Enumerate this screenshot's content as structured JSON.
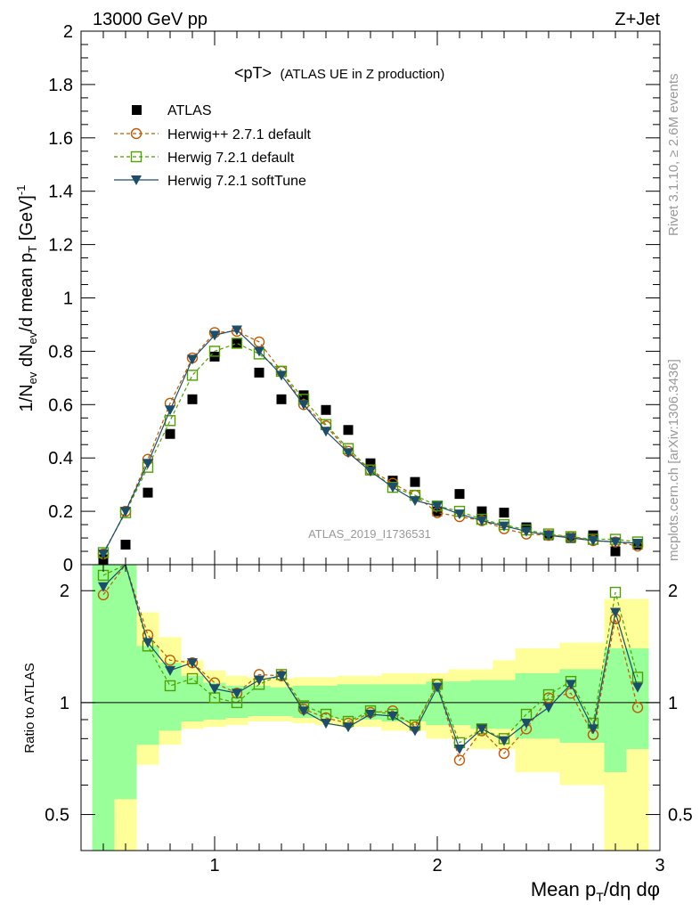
{
  "header": {
    "energy_label": "13000 GeV pp",
    "process_label": "Z+Jet"
  },
  "side_labels": {
    "rivet": "Rivet 3.1.10, ≥ 2.6M events",
    "mcplots": "mcplots.cern.ch [arXiv:1306.3436]"
  },
  "chart_data": {
    "type": "scatter",
    "title": "<pT> (ATLAS UE in Z production)",
    "title_main": "<pT>",
    "title_sub": "(ATLAS UE in Z production)",
    "analysis_id": "ATLAS_2019_I1736531",
    "xlabel": "Mean p_T/dη dφ",
    "xlabel_main": "Mean p",
    "xlabel_sub": "T",
    "xlabel_tail": "/dη dφ",
    "ylabel": "1/N_ev dN_ev/d mean p_T [GeV]^-1",
    "ratio_ylabel": "Ratio to ATLAS",
    "xlim": [
      0.4,
      3.0
    ],
    "ylim": [
      0,
      2.0
    ],
    "ratio_ylim": [
      0.4,
      2.35
    ],
    "ratio_log_scale": true,
    "x_ticks": [
      "1",
      "2",
      "3"
    ],
    "y_ticks": [
      "0",
      "0.2",
      "0.4",
      "0.6",
      "0.8",
      "1",
      "1.2",
      "1.4",
      "1.6",
      "1.8",
      "2"
    ],
    "ratio_ticks": [
      "0.5",
      "1",
      "2"
    ],
    "legend_placement": "top-left",
    "x": [
      0.5,
      0.6,
      0.7,
      0.8,
      0.9,
      1.0,
      1.1,
      1.2,
      1.3,
      1.4,
      1.5,
      1.6,
      1.7,
      1.8,
      1.9,
      2.0,
      2.1,
      2.2,
      2.3,
      2.4,
      2.5,
      2.6,
      2.7,
      2.8,
      2.9
    ],
    "series": [
      {
        "name": "ATLAS",
        "color": "#000000",
        "marker": "square-filled",
        "values": [
          0.02,
          0.075,
          0.27,
          0.49,
          0.62,
          0.78,
          0.83,
          0.72,
          0.62,
          0.635,
          0.58,
          0.505,
          0.38,
          0.315,
          0.31,
          0.2,
          0.265,
          0.2,
          0.195,
          0.14,
          0.11,
          0.1,
          0.11,
          0.05,
          0.075
        ]
      },
      {
        "name": "Herwig++ 2.7.1 default",
        "color": "#c05a00",
        "marker": "circle-open",
        "values": [
          0.04,
          0.2,
          0.395,
          0.605,
          0.775,
          0.87,
          0.875,
          0.835,
          0.725,
          0.6,
          0.52,
          0.425,
          0.355,
          0.305,
          0.26,
          0.195,
          0.18,
          0.165,
          0.135,
          0.115,
          0.11,
          0.105,
          0.09,
          0.085,
          0.07
        ]
      },
      {
        "name": "Herwig 7.2.1 default",
        "color": "#4fa000",
        "marker": "square-open",
        "values": [
          0.045,
          0.195,
          0.365,
          0.54,
          0.71,
          0.8,
          0.83,
          0.79,
          0.725,
          0.62,
          0.525,
          0.435,
          0.355,
          0.29,
          0.26,
          0.22,
          0.2,
          0.17,
          0.15,
          0.13,
          0.115,
          0.105,
          0.095,
          0.095,
          0.085
        ]
      },
      {
        "name": "Herwig 7.2.1 softTune",
        "color": "#1c4d6b",
        "marker": "triangle-down-filled",
        "values": [
          0.04,
          0.2,
          0.38,
          0.58,
          0.77,
          0.86,
          0.88,
          0.8,
          0.71,
          0.6,
          0.5,
          0.42,
          0.35,
          0.29,
          0.24,
          0.22,
          0.19,
          0.165,
          0.145,
          0.125,
          0.11,
          0.1,
          0.09,
          0.085,
          0.08
        ]
      }
    ],
    "ratio_series": [
      {
        "name": "Herwig++ 2.7.1 default",
        "values": [
          1.95,
          2.6,
          1.52,
          1.3,
          1.28,
          1.13,
          1.06,
          1.19,
          1.18,
          0.96,
          0.91,
          0.88,
          0.94,
          0.95,
          0.86,
          1.12,
          0.7,
          0.84,
          0.73,
          0.85,
          1.03,
          1.06,
          0.82,
          1.68,
          0.97
        ]
      },
      {
        "name": "Herwig 7.2.1 default",
        "values": [
          2.2,
          2.6,
          1.42,
          1.11,
          1.16,
          1.03,
          1.0,
          1.12,
          1.19,
          0.98,
          0.93,
          0.89,
          0.95,
          0.93,
          0.87,
          1.12,
          0.78,
          0.85,
          0.8,
          0.93,
          1.05,
          1.14,
          0.88,
          1.98,
          1.17
        ]
      },
      {
        "name": "Herwig 7.2.1 softTune",
        "values": [
          2.05,
          2.6,
          1.45,
          1.22,
          1.28,
          1.09,
          1.06,
          1.15,
          1.18,
          0.95,
          0.88,
          0.86,
          0.93,
          0.92,
          0.84,
          1.1,
          0.75,
          0.85,
          0.79,
          0.88,
          0.97,
          1.12,
          0.85,
          1.75,
          1.1
        ]
      }
    ],
    "ratio_bands": {
      "x_edges": [
        0.45,
        0.55,
        0.65,
        0.75,
        0.85,
        0.95,
        1.05,
        1.15,
        1.25,
        1.35,
        1.45,
        1.55,
        1.65,
        1.75,
        1.85,
        1.95,
        2.05,
        2.15,
        2.25,
        2.35,
        2.45,
        2.55,
        2.65,
        2.75,
        2.85,
        2.95
      ],
      "yellow_lo": [
        0.3,
        0.4,
        0.68,
        0.77,
        0.85,
        0.86,
        0.87,
        0.89,
        0.89,
        0.88,
        0.87,
        0.86,
        0.86,
        0.84,
        0.84,
        0.8,
        0.8,
        0.75,
        0.75,
        0.65,
        0.65,
        0.6,
        0.6,
        0.3,
        0.38
      ],
      "yellow_hi": [
        2.5,
        2.5,
        1.75,
        1.5,
        1.3,
        1.22,
        1.18,
        1.17,
        1.16,
        1.17,
        1.17,
        1.18,
        1.18,
        1.2,
        1.2,
        1.2,
        1.23,
        1.23,
        1.3,
        1.4,
        1.4,
        1.45,
        1.45,
        1.9,
        1.9
      ],
      "green_lo": [
        0.4,
        0.55,
        0.77,
        0.84,
        0.89,
        0.9,
        0.91,
        0.92,
        0.92,
        0.91,
        0.91,
        0.9,
        0.9,
        0.89,
        0.89,
        0.87,
        0.87,
        0.85,
        0.85,
        0.8,
        0.8,
        0.78,
        0.78,
        0.65,
        0.75
      ],
      "green_hi": [
        2.5,
        2.5,
        1.42,
        1.28,
        1.18,
        1.13,
        1.11,
        1.11,
        1.1,
        1.11,
        1.11,
        1.12,
        1.12,
        1.12,
        1.12,
        1.14,
        1.14,
        1.15,
        1.15,
        1.2,
        1.2,
        1.23,
        1.23,
        1.4,
        1.4
      ]
    },
    "colors": {
      "band_yellow": "#ffff99",
      "band_green": "#99ff99",
      "axis": "#000000",
      "grey_text": "#999999"
    }
  }
}
